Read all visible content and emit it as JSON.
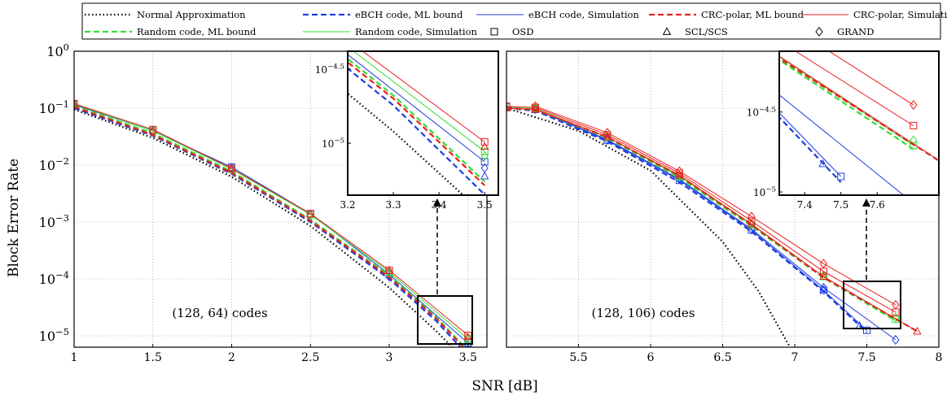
{
  "figure": {
    "xlabel": "SNR [dB]",
    "ylabel": "Block Error Rate"
  },
  "legend": {
    "entries": [
      {
        "label": "Normal Approximation",
        "color": "#000000",
        "style": "dotted",
        "marker": "none"
      },
      {
        "label": "eBCH code, ML bound",
        "color": "#1f3fe0",
        "style": "dashed",
        "marker": "none"
      },
      {
        "label": "eBCH code, Simulation",
        "color": "#1f3fe0",
        "style": "solid",
        "marker": "none"
      },
      {
        "label": "CRC-polar,  ML bound",
        "color": "#e8201c",
        "style": "dashed",
        "marker": "none"
      },
      {
        "label": "CRC-polar,  Simulation",
        "color": "#e8201c",
        "style": "solid",
        "marker": "none"
      },
      {
        "label": "Random code,  ML bound",
        "color": "#33dd33",
        "style": "dashed",
        "marker": "none"
      },
      {
        "label": "Random code,  Simulation",
        "color": "#33dd33",
        "style": "solid",
        "marker": "none"
      },
      {
        "label": "OSD",
        "color": "#000000",
        "style": "none",
        "marker": "square"
      },
      {
        "label": "SCL/SCS",
        "color": "#000000",
        "style": "none",
        "marker": "triangle"
      },
      {
        "label": "GRAND",
        "color": "#000000",
        "style": "none",
        "marker": "diamond"
      }
    ]
  },
  "colors": {
    "black": "#000000",
    "blue": "#1f3fe0",
    "red": "#e8201c",
    "green": "#33dd33"
  },
  "chart_data": [
    {
      "type": "line",
      "annotation": "(128, 64) codes",
      "x_ticks": [
        "1",
        "1.5",
        "2",
        "2.5",
        "3",
        "3.5"
      ],
      "y_ticks": [
        "10^0",
        "10^-1",
        "10^-2",
        "10^-3",
        "10^-4",
        "10^-5"
      ],
      "xlim": [
        1,
        3.62
      ],
      "ylim_log10": [
        -5.2,
        0
      ],
      "yscale": "log",
      "grid": true,
      "series": [
        {
          "key": "na",
          "color": "black",
          "style": "dotted",
          "marker": "none",
          "x": [
            1,
            1.5,
            2,
            2.5,
            3,
            3.3,
            3.5
          ],
          "y": [
            0.095,
            0.03,
            0.0062,
            0.00085,
            7e-05,
            1.2e-05,
            3.3e-06
          ]
        },
        {
          "key": "bch_ml",
          "color": "blue",
          "style": "dashed",
          "marker": "none",
          "x": [
            1,
            1.5,
            2,
            2.5,
            3,
            3.3,
            3.5
          ],
          "y": [
            0.1,
            0.033,
            0.007,
            0.001,
            0.0001,
            1.8e-05,
            4.5e-06
          ]
        },
        {
          "key": "bch_sim",
          "color": "blue",
          "style": "solid",
          "marker": "square",
          "x": [
            1,
            1.5,
            2,
            2.5,
            3,
            3.5
          ],
          "y": [
            0.115,
            0.04,
            0.0092,
            0.0014,
            0.00012,
            7.5e-06
          ]
        },
        {
          "key": "bch_grand",
          "color": "blue",
          "style": "none",
          "marker": "diamond",
          "x": [
            1,
            1.5,
            2,
            2.5,
            3,
            3.5
          ],
          "y": [
            0.112,
            0.038,
            0.0088,
            0.0013,
            0.00011,
            6.8e-06
          ]
        },
        {
          "key": "bch_scl",
          "color": "blue",
          "style": "none",
          "marker": "triangle",
          "x": [
            3.5
          ],
          "y": [
            6e-06
          ]
        },
        {
          "key": "rand_ml",
          "color": "green",
          "style": "dashed",
          "marker": "none",
          "x": [
            1,
            1.5,
            2,
            2.5,
            3,
            3.3,
            3.5
          ],
          "y": [
            0.11,
            0.036,
            0.0077,
            0.0011,
            0.000115,
            2.1e-05,
            5.5e-06
          ]
        },
        {
          "key": "rand_sim",
          "color": "green",
          "style": "solid",
          "marker": "square",
          "x": [
            1,
            1.5,
            2,
            2.5,
            3,
            3.5
          ],
          "y": [
            0.118,
            0.04,
            0.0085,
            0.00135,
            0.000132,
            8.8e-06
          ]
        },
        {
          "key": "rand_grand",
          "color": "green",
          "style": "none",
          "marker": "diamond",
          "x": [
            1,
            1.5,
            2,
            2.5,
            3,
            3.5
          ],
          "y": [
            0.115,
            0.039,
            0.0083,
            0.0013,
            0.000128,
            8.2e-06
          ]
        },
        {
          "key": "polar_ml",
          "color": "red",
          "style": "dashed",
          "marker": "none",
          "x": [
            1,
            1.5,
            2,
            2.5,
            3,
            3.3,
            3.5
          ],
          "y": [
            0.105,
            0.034,
            0.0073,
            0.00105,
            0.000108,
            2e-05,
            5.2e-06
          ]
        },
        {
          "key": "polar_sim",
          "color": "red",
          "style": "solid",
          "marker": "square",
          "x": [
            1,
            1.5,
            2,
            2.5,
            3,
            3.5
          ],
          "y": [
            0.12,
            0.042,
            0.0087,
            0.0014,
            0.000142,
            1.02e-05
          ]
        },
        {
          "key": "polar_scl",
          "color": "red",
          "style": "none",
          "marker": "triangle",
          "x": [
            1,
            1.5,
            2,
            2.5,
            3,
            3.5
          ],
          "y": [
            0.118,
            0.041,
            0.0086,
            0.00138,
            0.00014,
            9.5e-06
          ]
        }
      ],
      "inset": {
        "xlim": [
          3.2,
          3.53
        ],
        "ylim_log10": [
          -5.35,
          -4.38
        ],
        "x_ticks": [
          "3.2",
          "3.3",
          "3.4",
          "3.5"
        ],
        "y_ticks": [
          "10^-4.5",
          "10^-5"
        ]
      }
    },
    {
      "type": "line",
      "annotation": "(128, 106) codes",
      "x_ticks": [
        "5.5",
        "6",
        "6.5",
        "7",
        "7.5",
        "8"
      ],
      "xlim": [
        5.0,
        8.0
      ],
      "ylim_log10": [
        -5.2,
        0
      ],
      "yscale": "log",
      "grid": true,
      "series": [
        {
          "key": "na",
          "color": "black",
          "style": "dotted",
          "marker": "none",
          "x": [
            5.0,
            5.5,
            6.0,
            6.5,
            6.75,
            7.0
          ],
          "y": [
            0.1,
            0.04,
            0.008,
            0.00045,
            6e-05,
            4.5e-06
          ]
        },
        {
          "key": "bch_ml",
          "color": "blue",
          "style": "dashed",
          "marker": "none",
          "x": [
            5.0,
            5.2,
            5.7,
            6.2,
            6.7,
            7.2,
            7.5
          ],
          "y": [
            0.1,
            0.09,
            0.026,
            0.005,
            0.00068,
            6e-05,
            1.15e-05
          ]
        },
        {
          "key": "bch_sim",
          "color": "blue",
          "style": "solid",
          "marker": "square",
          "x": [
            5.0,
            5.2,
            5.7,
            6.2,
            6.7,
            7.2,
            7.5
          ],
          "y": [
            0.105,
            0.095,
            0.027,
            0.0054,
            0.00072,
            6.3e-05,
            1.25e-05
          ]
        },
        {
          "key": "bch_grand",
          "color": "blue",
          "style": "solid",
          "marker": "diamond",
          "x": [
            5.2,
            5.7,
            6.2,
            6.7,
            7.2,
            7.7
          ],
          "y": [
            0.096,
            0.028,
            0.0056,
            0.00075,
            7e-05,
            8.5e-06
          ]
        },
        {
          "key": "bch_scl",
          "color": "blue",
          "style": "none",
          "marker": "triangle",
          "x": [
            7.2,
            7.45
          ],
          "y": [
            6.5e-05,
            1.5e-05
          ]
        },
        {
          "key": "rand_ml",
          "color": "green",
          "style": "dashed",
          "marker": "none",
          "x": [
            5.0,
            5.2,
            5.7,
            6.2,
            6.7,
            7.2,
            7.7
          ],
          "y": [
            0.1,
            0.094,
            0.03,
            0.006,
            0.00085,
            0.000105,
            1.85e-05
          ]
        },
        {
          "key": "rand_sim",
          "color": "green",
          "style": "solid",
          "marker": "square",
          "x": [
            5.0,
            5.2,
            5.7,
            6.2,
            6.7,
            7.2,
            7.7
          ],
          "y": [
            0.103,
            0.098,
            0.031,
            0.0063,
            0.0009,
            0.00011,
            1.95e-05
          ]
        },
        {
          "key": "rand_grand",
          "color": "green",
          "style": "none",
          "marker": "diamond",
          "x": [
            5.2,
            5.7,
            6.2,
            6.7,
            7.2,
            7.7
          ],
          "y": [
            0.1,
            0.032,
            0.0065,
            0.00093,
            0.000115,
            2.1e-05
          ]
        },
        {
          "key": "polar_ml",
          "color": "red",
          "style": "dashed",
          "marker": "none",
          "x": [
            5.0,
            5.2,
            5.7,
            6.2,
            6.7,
            7.2,
            7.85
          ],
          "y": [
            0.1,
            0.094,
            0.031,
            0.0065,
            0.0009,
            0.000106,
            1.2e-05
          ]
        },
        {
          "key": "polar_sim",
          "color": "red",
          "style": "solid",
          "marker": "square",
          "x": [
            5.0,
            5.2,
            5.7,
            6.2,
            6.7,
            7.2,
            7.7
          ],
          "y": [
            0.108,
            0.103,
            0.034,
            0.0072,
            0.00104,
            0.000135,
            2.6e-05
          ]
        },
        {
          "key": "polar_scl",
          "color": "red",
          "style": "solid",
          "marker": "triangle",
          "x": [
            5.0,
            5.2,
            5.7,
            6.2,
            6.7,
            7.2,
            7.85
          ],
          "y": [
            0.1,
            0.095,
            0.031,
            0.0066,
            0.00092,
            0.00011,
            1.2e-05
          ]
        },
        {
          "key": "polar_grand",
          "color": "red",
          "style": "solid",
          "marker": "diamond",
          "x": [
            5.2,
            5.7,
            6.2,
            6.7,
            7.2,
            7.7
          ],
          "y": [
            0.108,
            0.037,
            0.0078,
            0.00125,
            0.000185,
            3.5e-05
          ]
        }
      ],
      "inset": {
        "xlim": [
          7.33,
          7.77
        ],
        "ylim_log10": [
          -5.02,
          -4.12
        ],
        "x_ticks": [
          "7.4",
          "7.5",
          "7.6"
        ],
        "y_ticks": [
          "10^-4.5",
          "10^-5"
        ]
      }
    }
  ]
}
